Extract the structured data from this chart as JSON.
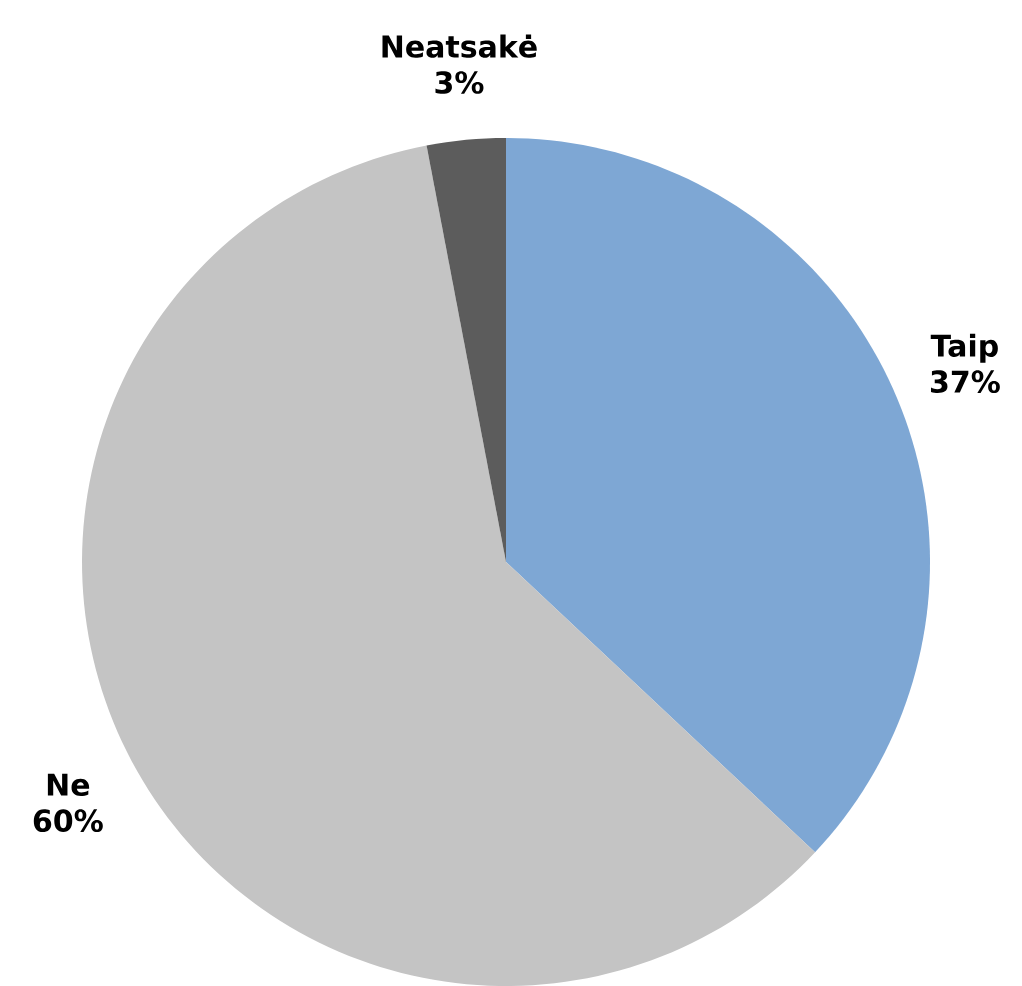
{
  "chart_data": {
    "type": "pie",
    "categories": [
      "Taip",
      "Ne",
      "Neatsakė"
    ],
    "values": [
      37,
      60,
      3
    ],
    "colors": [
      "#7ea7d4",
      "#c4c4c4",
      "#5c5c5c"
    ],
    "value_labels": [
      "37%",
      "60%",
      "3%"
    ]
  }
}
